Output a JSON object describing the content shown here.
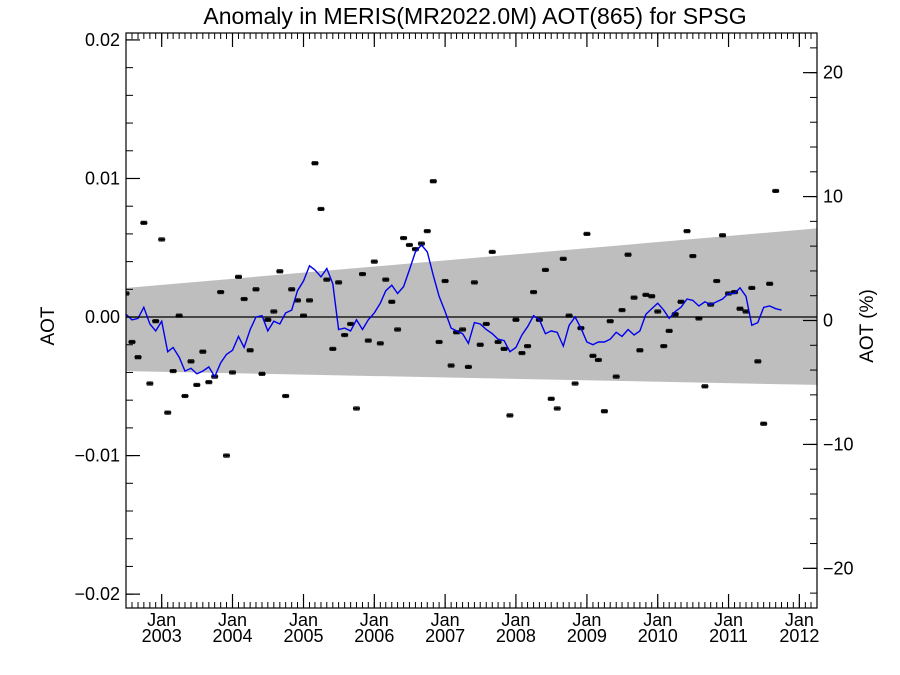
{
  "chart_data": {
    "type": "scatter",
    "title": "Anomaly in MERIS(MR2022.0M) AOT(865) for SPSG",
    "ylabel": "AOT",
    "ylabel_right": "AOT (%)",
    "xlim": [
      "2002-07-01",
      "2012-04-01"
    ],
    "ylim": [
      -0.021,
      0.0205
    ],
    "ylim_right": [
      -23.2,
      23.2
    ],
    "yticks": [
      {
        "value": 0.02,
        "label": "0.02"
      },
      {
        "value": 0.01,
        "label": "0.01"
      },
      {
        "value": 0.0,
        "label": "0.00"
      },
      {
        "value": -0.01,
        "label": "−0.01"
      },
      {
        "value": -0.02,
        "label": "−0.02"
      }
    ],
    "yticks_right": [
      {
        "value": 20,
        "label": "20"
      },
      {
        "value": 10,
        "label": "10"
      },
      {
        "value": 0,
        "label": "0"
      },
      {
        "value": -10,
        "label": "−10"
      },
      {
        "value": -20,
        "label": "−20"
      }
    ],
    "xticks": [
      {
        "date": "2003-01-01",
        "month": "Jan",
        "year": "2003"
      },
      {
        "date": "2004-01-01",
        "month": "Jan",
        "year": "2004"
      },
      {
        "date": "2005-01-01",
        "month": "Jan",
        "year": "2005"
      },
      {
        "date": "2006-01-01",
        "month": "Jan",
        "year": "2006"
      },
      {
        "date": "2007-01-01",
        "month": "Jan",
        "year": "2007"
      },
      {
        "date": "2008-01-01",
        "month": "Jan",
        "year": "2008"
      },
      {
        "date": "2009-01-01",
        "month": "Jan",
        "year": "2009"
      },
      {
        "date": "2010-01-01",
        "month": "Jan",
        "year": "2010"
      },
      {
        "date": "2011-01-01",
        "month": "Jan",
        "year": "2011"
      },
      {
        "date": "2012-01-01",
        "month": "Jan",
        "year": "2012"
      }
    ],
    "band": {
      "color": "#bebebe",
      "upper": [
        [
          "2002-07-01",
          0.0021
        ],
        [
          "2012-04-01",
          0.0064
        ]
      ],
      "lower": [
        [
          "2002-07-01",
          -0.0039
        ],
        [
          "2012-04-01",
          -0.0049
        ]
      ]
    },
    "zero_line": true,
    "series": [
      {
        "type": "scatter",
        "color": "#000000",
        "error": 0.00012,
        "points": [
          [
            "2002-07-01",
            0.0017
          ],
          [
            "2002-08-01",
            -0.0018
          ],
          [
            "2002-09-01",
            -0.0029
          ],
          [
            "2002-10-01",
            0.0068
          ],
          [
            "2002-11-01",
            -0.0048
          ],
          [
            "2002-12-01",
            -0.0003
          ],
          [
            "2003-01-01",
            0.0056
          ],
          [
            "2003-02-01",
            -0.0069
          ],
          [
            "2003-03-01",
            -0.0039
          ],
          [
            "2003-04-01",
            0.0001
          ],
          [
            "2003-05-01",
            -0.0057
          ],
          [
            "2003-06-01",
            -0.0032
          ],
          [
            "2003-07-01",
            -0.0049
          ],
          [
            "2003-08-01",
            -0.0025
          ],
          [
            "2003-09-01",
            -0.0047
          ],
          [
            "2003-10-01",
            -0.0043
          ],
          [
            "2003-11-01",
            0.0018
          ],
          [
            "2003-12-01",
            -0.01
          ],
          [
            "2004-01-01",
            -0.004
          ],
          [
            "2004-02-01",
            0.0029
          ],
          [
            "2004-03-01",
            0.0013
          ],
          [
            "2004-04-01",
            -0.0024
          ],
          [
            "2004-05-01",
            0.002
          ],
          [
            "2004-06-01",
            -0.0041
          ],
          [
            "2004-07-01",
            -0.0002
          ],
          [
            "2004-08-01",
            0.0004
          ],
          [
            "2004-09-01",
            0.0033
          ],
          [
            "2004-10-01",
            -0.0057
          ],
          [
            "2004-11-01",
            0.002
          ],
          [
            "2004-12-01",
            0.0012
          ],
          [
            "2005-01-01",
            0.0001
          ],
          [
            "2005-02-01",
            0.0012
          ],
          [
            "2005-03-01",
            0.0111
          ],
          [
            "2005-04-01",
            0.0078
          ],
          [
            "2005-05-01",
            0.0027
          ],
          [
            "2005-06-01",
            -0.0023
          ],
          [
            "2005-07-01",
            0.0025
          ],
          [
            "2005-08-01",
            -0.0013
          ],
          [
            "2005-09-01",
            -0.0005
          ],
          [
            "2005-10-01",
            -0.0066
          ],
          [
            "2005-11-01",
            0.0031
          ],
          [
            "2005-12-01",
            -0.0017
          ],
          [
            "2006-01-01",
            0.004
          ],
          [
            "2006-02-01",
            -0.0019
          ],
          [
            "2006-03-01",
            0.0027
          ],
          [
            "2006-04-01",
            0.0011
          ],
          [
            "2006-05-01",
            -0.0009
          ],
          [
            "2006-06-01",
            0.0057
          ],
          [
            "2006-07-01",
            0.0052
          ],
          [
            "2006-08-01",
            0.0049
          ],
          [
            "2006-09-01",
            0.0053
          ],
          [
            "2006-10-01",
            0.0062
          ],
          [
            "2006-11-01",
            0.0098
          ],
          [
            "2006-12-01",
            -0.0018
          ],
          [
            "2007-01-01",
            0.0026
          ],
          [
            "2007-02-01",
            -0.0035
          ],
          [
            "2007-03-01",
            -0.0011
          ],
          [
            "2007-04-01",
            -0.0009
          ],
          [
            "2007-05-01",
            -0.0036
          ],
          [
            "2007-06-01",
            0.0025
          ],
          [
            "2007-07-01",
            -0.002
          ],
          [
            "2007-08-01",
            -0.0005
          ],
          [
            "2007-09-01",
            0.0047
          ],
          [
            "2007-10-01",
            -0.0018
          ],
          [
            "2007-11-01",
            -0.0023
          ],
          [
            "2007-12-01",
            -0.0071
          ],
          [
            "2008-01-01",
            -0.0002
          ],
          [
            "2008-02-01",
            -0.0026
          ],
          [
            "2008-03-01",
            -0.0021
          ],
          [
            "2008-04-01",
            0.0018
          ],
          [
            "2008-05-01",
            -0.0002
          ],
          [
            "2008-06-01",
            0.0034
          ],
          [
            "2008-07-01",
            -0.0059
          ],
          [
            "2008-08-01",
            -0.0066
          ],
          [
            "2008-09-01",
            0.0042
          ],
          [
            "2008-10-01",
            0.0001
          ],
          [
            "2008-11-01",
            -0.0048
          ],
          [
            "2008-12-01",
            -0.0008
          ],
          [
            "2009-01-01",
            0.006
          ],
          [
            "2009-02-01",
            -0.0028
          ],
          [
            "2009-03-01",
            -0.0031
          ],
          [
            "2009-04-01",
            -0.0068
          ],
          [
            "2009-05-01",
            -0.0003
          ],
          [
            "2009-06-01",
            -0.0043
          ],
          [
            "2009-07-01",
            0.0005
          ],
          [
            "2009-08-01",
            0.0045
          ],
          [
            "2009-09-01",
            0.0014
          ],
          [
            "2009-10-01",
            -0.0024
          ],
          [
            "2009-11-01",
            0.0016
          ],
          [
            "2009-12-01",
            0.0015
          ],
          [
            "2010-01-01",
            0.0004
          ],
          [
            "2010-02-01",
            -0.0021
          ],
          [
            "2010-03-01",
            -0.001
          ],
          [
            "2010-04-01",
            0.0002
          ],
          [
            "2010-05-01",
            0.0011
          ],
          [
            "2010-06-01",
            0.0062
          ],
          [
            "2010-07-01",
            0.0044
          ],
          [
            "2010-08-01",
            -0.0001
          ],
          [
            "2010-09-01",
            -0.005
          ],
          [
            "2010-10-01",
            0.0009
          ],
          [
            "2010-11-01",
            0.0026
          ],
          [
            "2010-12-01",
            0.0059
          ],
          [
            "2011-01-01",
            0.0017
          ],
          [
            "2011-02-01",
            0.0018
          ],
          [
            "2011-03-01",
            0.0006
          ],
          [
            "2011-04-01",
            0.0004
          ],
          [
            "2011-05-01",
            0.0021
          ],
          [
            "2011-06-01",
            -0.0032
          ],
          [
            "2011-07-01",
            -0.0077
          ],
          [
            "2011-08-01",
            0.0024
          ],
          [
            "2011-09-01",
            0.0091
          ]
        ]
      },
      {
        "type": "line",
        "color": "#0000ee",
        "points": [
          [
            "2002-07-01",
            0.0002
          ],
          [
            "2002-08-01",
            -0.0002
          ],
          [
            "2002-09-01",
            -0.0001
          ],
          [
            "2002-10-01",
            0.0007
          ],
          [
            "2002-11-01",
            -0.0005
          ],
          [
            "2002-12-01",
            -0.001
          ],
          [
            "2003-01-01",
            -0.0003
          ],
          [
            "2003-02-01",
            -0.0025
          ],
          [
            "2003-03-01",
            -0.0022
          ],
          [
            "2003-04-01",
            -0.0029
          ],
          [
            "2003-05-01",
            -0.0039
          ],
          [
            "2003-06-01",
            -0.0037
          ],
          [
            "2003-07-01",
            -0.0041
          ],
          [
            "2003-08-01",
            -0.0039
          ],
          [
            "2003-09-01",
            -0.0036
          ],
          [
            "2003-10-01",
            -0.0043
          ],
          [
            "2003-11-01",
            -0.0033
          ],
          [
            "2003-12-01",
            -0.0027
          ],
          [
            "2004-01-01",
            -0.0024
          ],
          [
            "2004-02-01",
            -0.0014
          ],
          [
            "2004-03-01",
            -0.0022
          ],
          [
            "2004-04-01",
            -0.0009
          ],
          [
            "2004-05-01",
            0.0
          ],
          [
            "2004-06-01",
            0.0001
          ],
          [
            "2004-07-01",
            -0.001
          ],
          [
            "2004-08-01",
            -0.0003
          ],
          [
            "2004-09-01",
            -0.0005
          ],
          [
            "2004-10-01",
            0.0003
          ],
          [
            "2004-11-01",
            0.0005
          ],
          [
            "2004-12-01",
            0.0019
          ],
          [
            "2005-01-01",
            0.0026
          ],
          [
            "2005-02-01",
            0.0037
          ],
          [
            "2005-03-01",
            0.0034
          ],
          [
            "2005-04-01",
            0.0029
          ],
          [
            "2005-05-01",
            0.0035
          ],
          [
            "2005-06-01",
            0.0024
          ],
          [
            "2005-07-01",
            -0.0009
          ],
          [
            "2005-08-01",
            -0.0008
          ],
          [
            "2005-09-01",
            -0.001
          ],
          [
            "2005-10-01",
            -0.0002
          ],
          [
            "2005-11-01",
            -0.0009
          ],
          [
            "2005-12-01",
            -0.0002
          ],
          [
            "2006-01-01",
            0.0003
          ],
          [
            "2006-02-01",
            0.001
          ],
          [
            "2006-03-01",
            0.0019
          ],
          [
            "2006-04-01",
            0.0023
          ],
          [
            "2006-05-01",
            0.0017
          ],
          [
            "2006-06-01",
            0.0022
          ],
          [
            "2006-07-01",
            0.0034
          ],
          [
            "2006-08-01",
            0.0047
          ],
          [
            "2006-09-01",
            0.0052
          ],
          [
            "2006-10-01",
            0.0047
          ],
          [
            "2006-11-01",
            0.003
          ],
          [
            "2006-12-01",
            0.0015
          ],
          [
            "2007-01-01",
            0.0004
          ],
          [
            "2007-02-01",
            -0.0008
          ],
          [
            "2007-03-01",
            -0.001
          ],
          [
            "2007-04-01",
            -0.0012
          ],
          [
            "2007-05-01",
            -0.0019
          ],
          [
            "2007-06-01",
            -0.0004
          ],
          [
            "2007-07-01",
            -0.0005
          ],
          [
            "2007-08-01",
            -0.0009
          ],
          [
            "2007-09-01",
            -0.0012
          ],
          [
            "2007-10-01",
            -0.0016
          ],
          [
            "2007-11-01",
            -0.0017
          ],
          [
            "2007-12-01",
            -0.0025
          ],
          [
            "2008-01-01",
            -0.0022
          ],
          [
            "2008-02-01",
            -0.0013
          ],
          [
            "2008-03-01",
            -0.0007
          ],
          [
            "2008-04-01",
            0.0001
          ],
          [
            "2008-05-01",
            -0.0002
          ],
          [
            "2008-06-01",
            -0.0012
          ],
          [
            "2008-07-01",
            -0.001
          ],
          [
            "2008-08-01",
            -0.0011
          ],
          [
            "2008-09-01",
            -0.0021
          ],
          [
            "2008-10-01",
            -0.0006
          ],
          [
            "2008-11-01",
            0.0
          ],
          [
            "2008-12-01",
            -0.0008
          ],
          [
            "2009-01-01",
            -0.0018
          ],
          [
            "2009-02-01",
            -0.002
          ],
          [
            "2009-03-01",
            -0.0018
          ],
          [
            "2009-04-01",
            -0.0018
          ],
          [
            "2009-05-01",
            -0.0016
          ],
          [
            "2009-06-01",
            -0.0011
          ],
          [
            "2009-07-01",
            -0.0014
          ],
          [
            "2009-08-01",
            -0.0009
          ],
          [
            "2009-09-01",
            -0.0013
          ],
          [
            "2009-10-01",
            -0.001
          ],
          [
            "2009-11-01",
            0.0002
          ],
          [
            "2009-12-01",
            0.0006
          ],
          [
            "2010-01-01",
            0.001
          ],
          [
            "2010-02-01",
            0.0005
          ],
          [
            "2010-03-01",
            -0.0001
          ],
          [
            "2010-04-01",
            0.0004
          ],
          [
            "2010-05-01",
            0.0007
          ],
          [
            "2010-06-01",
            0.0013
          ],
          [
            "2010-07-01",
            0.0012
          ],
          [
            "2010-08-01",
            0.0008
          ],
          [
            "2010-09-01",
            0.0011
          ],
          [
            "2010-10-01",
            0.0009
          ],
          [
            "2010-11-01",
            0.0011
          ],
          [
            "2010-12-01",
            0.0013
          ],
          [
            "2011-01-01",
            0.0017
          ],
          [
            "2011-02-01",
            0.0017
          ],
          [
            "2011-03-01",
            0.0021
          ],
          [
            "2011-04-01",
            0.0015
          ],
          [
            "2011-05-01",
            -0.0006
          ],
          [
            "2011-06-01",
            -0.0004
          ],
          [
            "2011-07-01",
            0.0007
          ],
          [
            "2011-08-01",
            0.0008
          ],
          [
            "2011-09-01",
            0.0006
          ],
          [
            "2011-10-01",
            0.0005
          ]
        ]
      }
    ]
  }
}
